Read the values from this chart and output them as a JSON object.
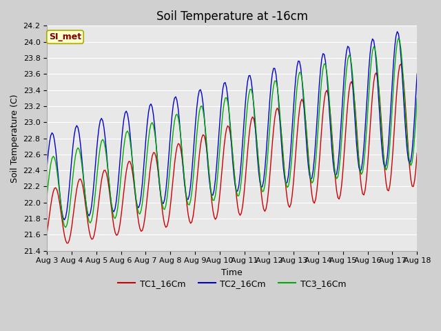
{
  "title": "Soil Temperature at -16cm",
  "xlabel": "Time",
  "ylabel": "Soil Temperature (C)",
  "ylim": [
    21.4,
    24.2
  ],
  "x_tick_labels": [
    "Aug 3",
    "Aug 4",
    "Aug 5",
    "Aug 6",
    "Aug 7",
    "Aug 8",
    "Aug 9",
    "Aug 10",
    "Aug 11",
    "Aug 12",
    "Aug 13",
    "Aug 14",
    "Aug 15",
    "Aug 16",
    "Aug 17",
    "Aug 18"
  ],
  "fig_bg_color": "#d0d0d0",
  "plot_bg_color": "#e8e8e8",
  "grid_color": "#ffffff",
  "legend_label": "SI_met",
  "legend_box_facecolor": "#ffffcc",
  "legend_box_edgecolor": "#aaaa00",
  "legend_text_color": "#800000",
  "series": [
    {
      "name": "TC1_16Cm",
      "color": "#cc0000"
    },
    {
      "name": "TC2_16Cm",
      "color": "#0000cc"
    },
    {
      "name": "TC3_16Cm",
      "color": "#00aa00"
    }
  ],
  "title_fontsize": 12,
  "axis_fontsize": 9,
  "tick_fontsize": 8
}
